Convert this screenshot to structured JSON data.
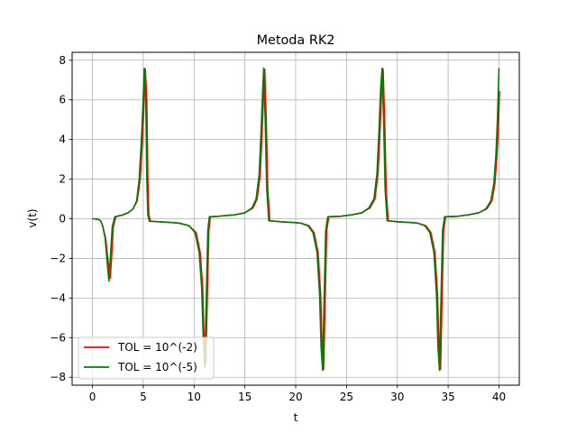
{
  "chart_data": {
    "type": "line",
    "title": "Metoda RK2",
    "xlabel": "t",
    "ylabel": "v(t)",
    "xlim": [
      -2,
      42
    ],
    "ylim": [
      -8.4,
      8.4
    ],
    "xticks": [
      0,
      5,
      10,
      15,
      20,
      25,
      30,
      35,
      40
    ],
    "yticks": [
      -8,
      -6,
      -4,
      -2,
      0,
      2,
      4,
      6,
      8
    ],
    "grid": true,
    "legend_position": "lower-left",
    "series": [
      {
        "name": "TOL = 10^(-2)",
        "color": "#ff0000",
        "points": [
          [
            0,
            0
          ],
          [
            0.5,
            -0.02
          ],
          [
            0.8,
            -0.1
          ],
          [
            1.0,
            -0.35
          ],
          [
            1.3,
            -1.0
          ],
          [
            1.55,
            -2.2
          ],
          [
            1.75,
            -3.0
          ],
          [
            1.9,
            -1.8
          ],
          [
            2.05,
            -0.4
          ],
          [
            2.3,
            0.1
          ],
          [
            3.0,
            0.2
          ],
          [
            3.5,
            0.3
          ],
          [
            4.0,
            0.5
          ],
          [
            4.4,
            0.9
          ],
          [
            4.7,
            2.0
          ],
          [
            4.9,
            3.8
          ],
          [
            5.05,
            5.5
          ],
          [
            5.2,
            7.55
          ],
          [
            5.35,
            6.0
          ],
          [
            5.45,
            2.0
          ],
          [
            5.55,
            0.2
          ],
          [
            5.7,
            -0.12
          ],
          [
            6.5,
            -0.15
          ],
          [
            7.5,
            -0.18
          ],
          [
            8.5,
            -0.22
          ],
          [
            9.5,
            -0.35
          ],
          [
            10.2,
            -0.7
          ],
          [
            10.6,
            -1.7
          ],
          [
            10.85,
            -3.5
          ],
          [
            11.0,
            -6.5
          ],
          [
            11.15,
            -7.3
          ],
          [
            11.3,
            -4.0
          ],
          [
            11.45,
            -0.6
          ],
          [
            11.6,
            0.1
          ],
          [
            12.5,
            0.13
          ],
          [
            14.0,
            0.2
          ],
          [
            15.0,
            0.3
          ],
          [
            15.8,
            0.55
          ],
          [
            16.2,
            1.0
          ],
          [
            16.5,
            2.2
          ],
          [
            16.7,
            4.5
          ],
          [
            16.85,
            6.5
          ],
          [
            16.95,
            7.55
          ],
          [
            17.1,
            5.0
          ],
          [
            17.25,
            1.5
          ],
          [
            17.45,
            -0.1
          ],
          [
            18.5,
            -0.15
          ],
          [
            19.5,
            -0.18
          ],
          [
            20.5,
            -0.22
          ],
          [
            21.3,
            -0.35
          ],
          [
            21.8,
            -0.7
          ],
          [
            22.2,
            -1.7
          ],
          [
            22.45,
            -3.8
          ],
          [
            22.6,
            -6.5
          ],
          [
            22.75,
            -7.6
          ],
          [
            22.9,
            -4.0
          ],
          [
            23.05,
            -0.6
          ],
          [
            23.25,
            0.1
          ],
          [
            24.5,
            0.13
          ],
          [
            25.5,
            0.2
          ],
          [
            26.5,
            0.3
          ],
          [
            27.3,
            0.55
          ],
          [
            27.8,
            1.0
          ],
          [
            28.1,
            2.3
          ],
          [
            28.3,
            4.5
          ],
          [
            28.45,
            6.5
          ],
          [
            28.6,
            7.55
          ],
          [
            28.75,
            5.0
          ],
          [
            28.9,
            1.5
          ],
          [
            29.1,
            -0.1
          ],
          [
            30.0,
            -0.15
          ],
          [
            31.0,
            -0.18
          ],
          [
            32.0,
            -0.22
          ],
          [
            32.8,
            -0.35
          ],
          [
            33.3,
            -0.7
          ],
          [
            33.7,
            -1.7
          ],
          [
            33.95,
            -3.8
          ],
          [
            34.1,
            -6.5
          ],
          [
            34.25,
            -7.6
          ],
          [
            34.4,
            -4.0
          ],
          [
            34.55,
            -0.6
          ],
          [
            34.75,
            0.1
          ],
          [
            36.0,
            0.13
          ],
          [
            37.0,
            0.2
          ],
          [
            38.0,
            0.3
          ],
          [
            38.8,
            0.5
          ],
          [
            39.3,
            0.9
          ],
          [
            39.6,
            1.8
          ],
          [
            39.8,
            3.2
          ],
          [
            39.95,
            4.8
          ],
          [
            40.05,
            6.45
          ]
        ]
      },
      {
        "name": "TOL = 10^(-5)",
        "color": "#008000",
        "points": [
          [
            0,
            0
          ],
          [
            0.5,
            -0.02
          ],
          [
            0.8,
            -0.1
          ],
          [
            1.0,
            -0.35
          ],
          [
            1.25,
            -1.0
          ],
          [
            1.45,
            -2.2
          ],
          [
            1.62,
            -3.15
          ],
          [
            1.78,
            -1.8
          ],
          [
            1.95,
            -0.4
          ],
          [
            2.2,
            0.1
          ],
          [
            3.0,
            0.2
          ],
          [
            3.5,
            0.3
          ],
          [
            4.0,
            0.5
          ],
          [
            4.35,
            0.9
          ],
          [
            4.6,
            2.0
          ],
          [
            4.8,
            3.8
          ],
          [
            4.95,
            5.5
          ],
          [
            5.1,
            7.6
          ],
          [
            5.25,
            6.0
          ],
          [
            5.35,
            2.0
          ],
          [
            5.45,
            0.2
          ],
          [
            5.6,
            -0.12
          ],
          [
            6.5,
            -0.15
          ],
          [
            7.5,
            -0.18
          ],
          [
            8.5,
            -0.22
          ],
          [
            9.5,
            -0.35
          ],
          [
            10.1,
            -0.7
          ],
          [
            10.5,
            -1.7
          ],
          [
            10.75,
            -3.5
          ],
          [
            10.9,
            -6.0
          ],
          [
            11.05,
            -7.5
          ],
          [
            11.2,
            -4.0
          ],
          [
            11.35,
            -0.6
          ],
          [
            11.5,
            0.1
          ],
          [
            12.5,
            0.13
          ],
          [
            14.0,
            0.2
          ],
          [
            15.0,
            0.3
          ],
          [
            15.7,
            0.55
          ],
          [
            16.1,
            1.0
          ],
          [
            16.4,
            2.2
          ],
          [
            16.6,
            4.5
          ],
          [
            16.75,
            6.5
          ],
          [
            16.85,
            7.6
          ],
          [
            17.0,
            5.0
          ],
          [
            17.15,
            1.5
          ],
          [
            17.35,
            -0.1
          ],
          [
            18.5,
            -0.15
          ],
          [
            19.5,
            -0.18
          ],
          [
            20.5,
            -0.22
          ],
          [
            21.2,
            -0.35
          ],
          [
            21.7,
            -0.7
          ],
          [
            22.1,
            -1.7
          ],
          [
            22.35,
            -3.8
          ],
          [
            22.5,
            -6.5
          ],
          [
            22.65,
            -7.65
          ],
          [
            22.8,
            -4.0
          ],
          [
            22.95,
            -0.6
          ],
          [
            23.15,
            0.1
          ],
          [
            24.5,
            0.13
          ],
          [
            25.5,
            0.2
          ],
          [
            26.5,
            0.3
          ],
          [
            27.2,
            0.55
          ],
          [
            27.7,
            1.0
          ],
          [
            28.0,
            2.3
          ],
          [
            28.2,
            4.5
          ],
          [
            28.35,
            6.5
          ],
          [
            28.5,
            7.6
          ],
          [
            28.65,
            5.0
          ],
          [
            28.8,
            1.5
          ],
          [
            29.0,
            -0.1
          ],
          [
            30.0,
            -0.15
          ],
          [
            31.0,
            -0.18
          ],
          [
            32.0,
            -0.22
          ],
          [
            32.7,
            -0.35
          ],
          [
            33.2,
            -0.7
          ],
          [
            33.6,
            -1.7
          ],
          [
            33.85,
            -3.8
          ],
          [
            34.0,
            -6.5
          ],
          [
            34.15,
            -7.65
          ],
          [
            34.3,
            -4.0
          ],
          [
            34.45,
            -0.6
          ],
          [
            34.65,
            0.1
          ],
          [
            36.0,
            0.13
          ],
          [
            37.0,
            0.2
          ],
          [
            38.0,
            0.3
          ],
          [
            38.7,
            0.5
          ],
          [
            39.2,
            0.9
          ],
          [
            39.5,
            1.8
          ],
          [
            39.7,
            3.2
          ],
          [
            39.85,
            5.0
          ],
          [
            40.0,
            7.6
          ]
        ]
      }
    ]
  }
}
